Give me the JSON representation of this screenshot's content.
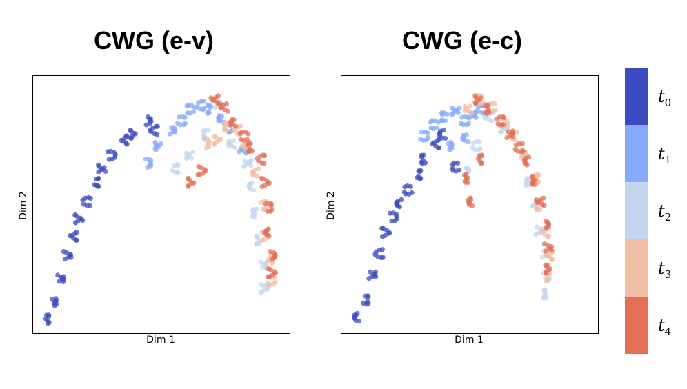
{
  "panels": [
    {
      "title": "CWG (e-v)",
      "xlabel": "Dim 1",
      "ylabel": "Dim 2"
    },
    {
      "title": "CWG (e-c)",
      "xlabel": "Dim 1",
      "ylabel": "Dim 2"
    }
  ],
  "colorbar": {
    "labels": [
      {
        "base": "t",
        "sub": "0"
      },
      {
        "base": "t",
        "sub": "1"
      },
      {
        "base": "t",
        "sub": "2"
      },
      {
        "base": "t",
        "sub": "3"
      },
      {
        "base": "t",
        "sub": "4"
      }
    ],
    "colors": [
      "#3b4cc0",
      "#86a9fc",
      "#c6d5ef",
      "#f3bea6",
      "#e36f55"
    ]
  },
  "chart_data": [
    {
      "type": "scatter",
      "title": "CWG (e-v)",
      "xlabel": "Dim 1",
      "ylabel": "Dim 2",
      "ticks": "none",
      "grid": false,
      "series": [
        {
          "name": "t0",
          "points": [
            [
              0.5,
              0.3
            ],
            [
              1.5,
              1.2
            ],
            [
              2.5,
              2.4
            ],
            [
              3.5,
              3.6
            ],
            [
              4.3,
              4.6
            ],
            [
              5.2,
              5.5
            ],
            [
              6.2,
              6.4
            ],
            [
              7.3,
              7.4
            ],
            [
              8.4,
              8.1
            ],
            [
              9.6,
              8.8
            ],
            [
              11.2,
              9.6
            ],
            [
              12.8,
              9.9
            ],
            [
              14.5,
              10.6
            ],
            [
              15.4,
              10.1
            ]
          ]
        },
        {
          "name": "t1",
          "points": [
            [
              14.5,
              8.4
            ],
            [
              16.2,
              9.3
            ],
            [
              17.8,
              10.1
            ],
            [
              19.2,
              10.6
            ],
            [
              20.6,
              11.2
            ],
            [
              21.8,
              11.4
            ],
            [
              23.4,
              11.2
            ],
            [
              24.9,
              10.7
            ],
            [
              26.3,
              10.2
            ],
            [
              27.6,
              9.1
            ]
          ]
        },
        {
          "name": "t2",
          "points": [
            [
              18.2,
              8.1
            ],
            [
              20.5,
              8.8
            ],
            [
              22.8,
              9.9
            ],
            [
              24.4,
              11.5
            ],
            [
              26.3,
              9.4
            ],
            [
              28.3,
              8.4
            ],
            [
              29.1,
              7.2
            ],
            [
              29.6,
              5.8
            ],
            [
              30.1,
              4.4
            ],
            [
              30.4,
              3.1
            ],
            [
              30.7,
              1.9
            ]
          ]
        },
        {
          "name": "t3",
          "points": [
            [
              22.5,
              9.4
            ],
            [
              24.3,
              9.6
            ],
            [
              25.7,
              10.3
            ],
            [
              26.8,
              10.1
            ],
            [
              28.2,
              9.3
            ],
            [
              29.6,
              7.9
            ],
            [
              30.3,
              6.2
            ],
            [
              30.9,
              4.6
            ],
            [
              31.2,
              3.4
            ],
            [
              31.6,
              2.3
            ]
          ]
        },
        {
          "name": "t4",
          "points": [
            [
              23.8,
              11.7
            ],
            [
              25.2,
              11.3
            ],
            [
              26.6,
              10.5
            ],
            [
              27.9,
              9.8
            ],
            [
              29.0,
              9.2
            ],
            [
              30.1,
              8.6
            ],
            [
              30.8,
              7.4
            ],
            [
              31.1,
              6.1
            ],
            [
              31.4,
              4.8
            ],
            [
              31.6,
              3.6
            ],
            [
              31.8,
              2.7
            ],
            [
              20.7,
              7.4
            ],
            [
              22.1,
              8.0
            ]
          ]
        }
      ]
    },
    {
      "type": "scatter",
      "title": "CWG (e-c)",
      "xlabel": "Dim 1",
      "ylabel": "Dim 2",
      "ticks": "none",
      "grid": false,
      "series": [
        {
          "name": "t0",
          "points": [
            [
              1.2,
              0.4
            ],
            [
              2.0,
              1.3
            ],
            [
              3.0,
              2.6
            ],
            [
              4.0,
              3.7
            ],
            [
              5.0,
              4.8
            ],
            [
              5.9,
              5.6
            ],
            [
              7.0,
              6.3
            ],
            [
              8.1,
              7.0
            ],
            [
              9.2,
              7.8
            ],
            [
              10.4,
              8.6
            ],
            [
              11.7,
              9.4
            ],
            [
              12.9,
              9.9
            ],
            [
              14.7,
              8.2
            ]
          ]
        },
        {
          "name": "t1",
          "points": [
            [
              10.2,
              9.8
            ],
            [
              11.7,
              10.4
            ],
            [
              13.2,
              10.8
            ],
            [
              14.6,
              11.1
            ],
            [
              15.8,
              10.6
            ],
            [
              16.8,
              10.9
            ],
            [
              17.9,
              11.2
            ],
            [
              13.5,
              9.3
            ],
            [
              16.1,
              9.7
            ]
          ]
        },
        {
          "name": "t2",
          "points": [
            [
              15.8,
              8.0
            ],
            [
              17.4,
              9.3
            ],
            [
              19.1,
              10.8
            ],
            [
              21.3,
              10.2
            ],
            [
              23.6,
              8.8
            ],
            [
              24.8,
              7.4
            ],
            [
              25.6,
              6.2
            ],
            [
              26.1,
              4.9
            ],
            [
              26.5,
              3.7
            ],
            [
              26.9,
              2.6
            ],
            [
              27.2,
              1.6
            ]
          ]
        },
        {
          "name": "t3",
          "points": [
            [
              16.4,
              11.2
            ],
            [
              18.0,
              11.7
            ],
            [
              19.5,
              11.3
            ],
            [
              21.2,
              10.5
            ],
            [
              22.7,
              9.8
            ],
            [
              24.2,
              8.9
            ],
            [
              25.4,
              7.6
            ],
            [
              26.2,
              6.2
            ],
            [
              26.8,
              4.8
            ],
            [
              27.3,
              3.6
            ],
            [
              27.6,
              2.5
            ]
          ]
        },
        {
          "name": "t4",
          "points": [
            [
              17.8,
              11.7
            ],
            [
              19.3,
              11.2
            ],
            [
              20.6,
              10.6
            ],
            [
              21.9,
              9.9
            ],
            [
              23.3,
              9.2
            ],
            [
              24.6,
              8.5
            ],
            [
              25.6,
              7.5
            ],
            [
              26.2,
              6.4
            ],
            [
              26.8,
              5.2
            ],
            [
              27.2,
              4.0
            ],
            [
              27.5,
              2.9
            ],
            [
              17.6,
              8.6
            ],
            [
              16.4,
              7.6
            ],
            [
              16.9,
              6.4
            ]
          ]
        }
      ]
    }
  ]
}
